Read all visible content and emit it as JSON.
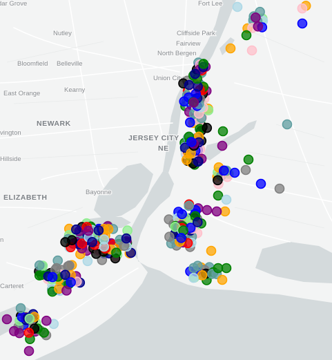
{
  "map": {
    "labels": {
      "cedar_grove": "dar Grove",
      "fort_lee": "Fort Lee",
      "nutley": "Nutley",
      "cliffside_park": "Cliffside Park",
      "fairview": "Fairview",
      "bloomfield": "Bloomfield",
      "belleville": "Belleville",
      "north_bergen": "North Bergen",
      "union_city": "Union City",
      "east_orange": "East Orange",
      "kearny": "Kearny",
      "newark": "NEWARK",
      "jersey_city": "JERSEY CITY",
      "new_york": "NE",
      "livingston": "vington",
      "hillside": "Hillside",
      "bayonne": "Bayonne",
      "elizabeth": "ELIZABETH",
      "linden": "n",
      "carteret": "Carteret"
    },
    "colors": {
      "land": "#f3f4f4",
      "water": "#d4dadc",
      "roads": "#ffffff",
      "labels": "#8a8e92"
    },
    "marker_palette": [
      "#800080",
      "#ff0000",
      "#ffa500",
      "#008000",
      "#000000",
      "#00008b",
      "#90ee90",
      "#add8e6",
      "#808080",
      "#ffc0cb",
      "#0000ff",
      "#5f9ea0"
    ]
  }
}
